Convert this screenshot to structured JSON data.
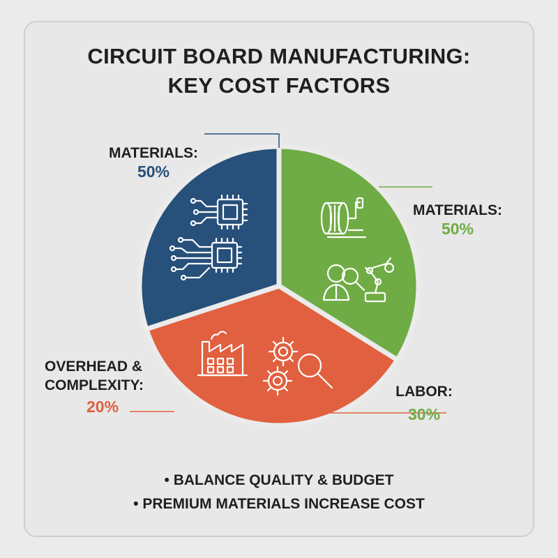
{
  "title": {
    "line1": "CIRCUIT BOARD MANUFACTURING:",
    "line2": "KEY COST FACTORS"
  },
  "colors": {
    "materials_blue": "#27507a",
    "materials_green": "#6fac45",
    "overhead_orange": "#e0603f",
    "text": "#1f1f1f"
  },
  "chart_data": {
    "type": "pie",
    "title": "CIRCUIT BOARD MANUFACTURING: KEY COST FACTORS",
    "slices": [
      {
        "label": "MATERIALS:",
        "value": 50,
        "display": "50%",
        "color": "#27507a",
        "icons": [
          "microchip-circuit-icon"
        ]
      },
      {
        "label": "MATERIALS:",
        "value": 50,
        "display": "50%",
        "color": "#6fac45",
        "icons": [
          "solder-wire-spool-icon",
          "inspector-robot-arm-icon"
        ]
      },
      {
        "label": "LABOR:",
        "value": 30,
        "display": "30%",
        "color": "#6fac45",
        "icons": []
      },
      {
        "label": "OVERHEAD & COMPLEXITY:",
        "value": 20,
        "display": "20%",
        "color": "#e0603f",
        "icons": [
          "factory-icon",
          "gears-magnifier-icon"
        ]
      }
    ]
  },
  "labels": {
    "materials_left": {
      "name": "MATERIALS:",
      "pct": "50%"
    },
    "materials_right": {
      "name": "MATERIALS:",
      "pct": "50%"
    },
    "labor": {
      "name": "LABOR:",
      "pct": "30%"
    },
    "overhead": {
      "line1": "OVERHEAD &",
      "line2": "COMPLEXITY:",
      "pct": "20%"
    }
  },
  "bullets": [
    "• BALANCE QUALITY & BUDGET",
    "• PREMIUM MATERIALS INCREASE COST"
  ]
}
